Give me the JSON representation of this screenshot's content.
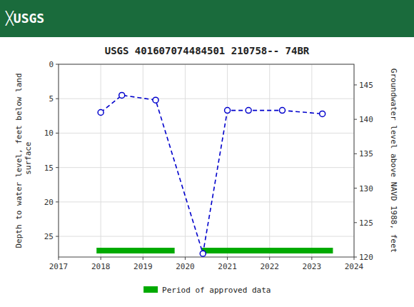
{
  "chart_data": {
    "type": "line",
    "header": "╳USGS",
    "title": "USGS 401607074484501 210758-- 74BR",
    "ylabel": "Depth to water level, feet below land\n surface",
    "y2label": "Groundwater level above NAVD 1988, feet",
    "xlim": [
      2017,
      2024
    ],
    "xticks": [
      2017,
      2018,
      2019,
      2020,
      2021,
      2022,
      2023,
      2024
    ],
    "ylim": [
      28,
      0
    ],
    "yticks": [
      0,
      5,
      10,
      15,
      20,
      25
    ],
    "y2lim": [
      120,
      148
    ],
    "y2ticks": [
      120,
      125,
      130,
      135,
      140,
      145
    ],
    "grid": true,
    "legend": "bottom",
    "series": [
      {
        "type": "line",
        "color": "#0000CC",
        "line_style": "dashed",
        "marker": "circle",
        "x": [
          2018.0,
          2018.5,
          2019.3,
          2020.42,
          2021.0,
          2021.5,
          2022.3,
          2023.25
        ],
        "values": [
          7.0,
          4.5,
          5.2,
          27.5,
          6.7,
          6.7,
          6.7,
          7.2
        ]
      },
      {
        "type": "span",
        "name": "Period of approved data",
        "color": "#00aa00",
        "starts": [
          2017.9,
          2020.4
        ],
        "ends": [
          2019.75,
          2023.5
        ]
      }
    ]
  }
}
